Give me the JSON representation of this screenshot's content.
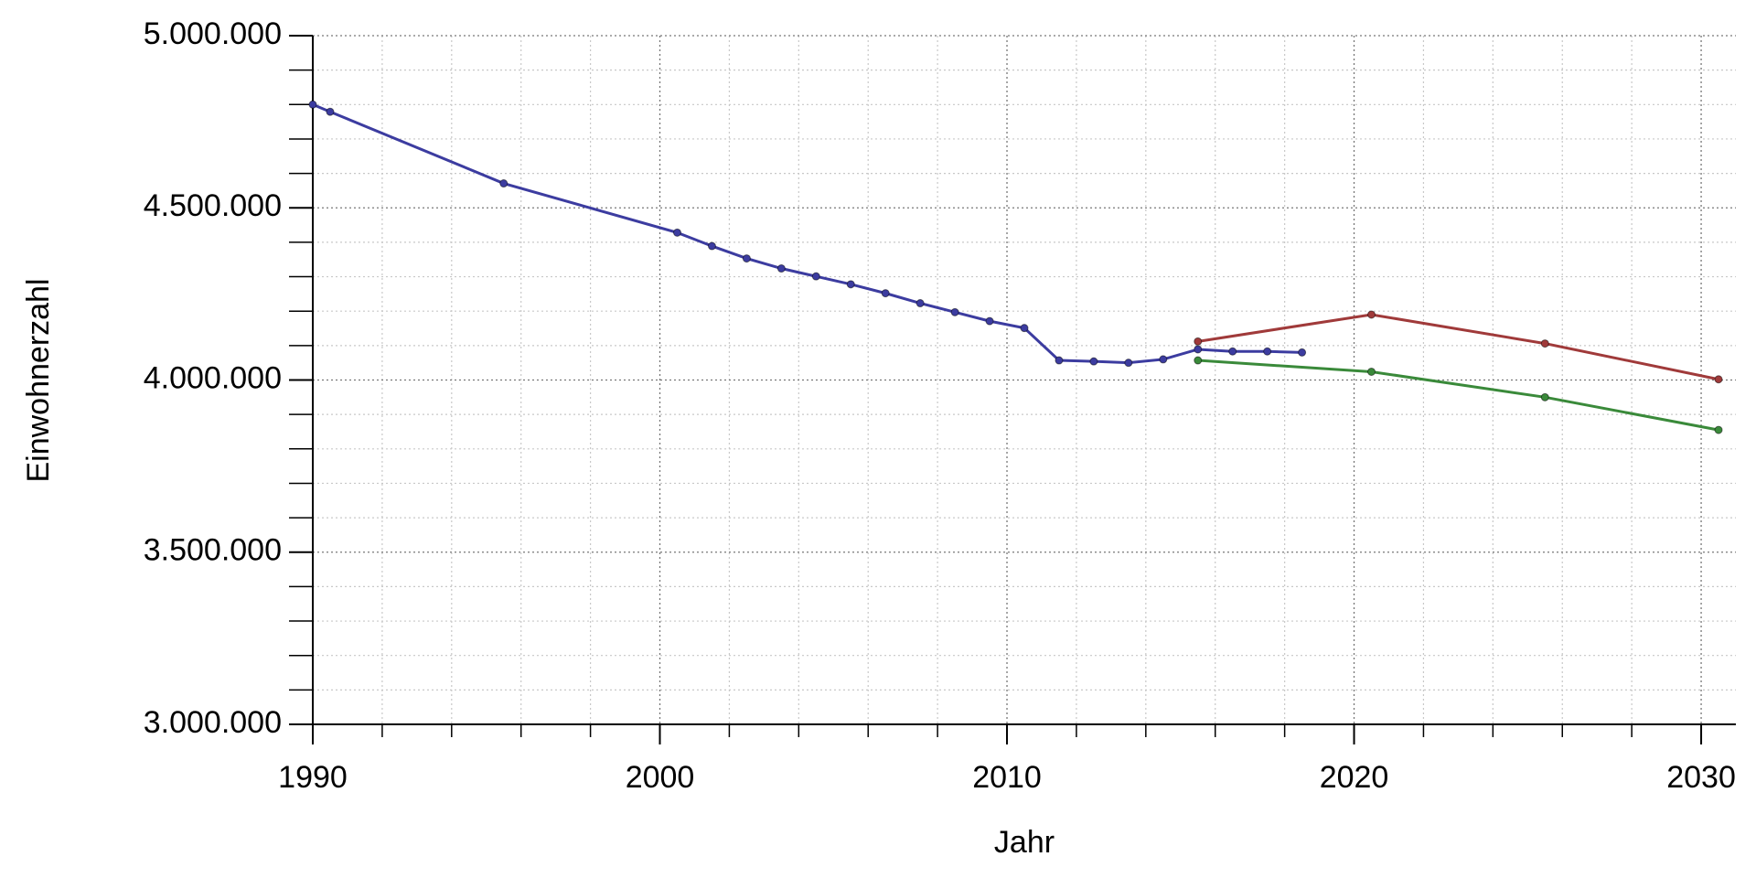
{
  "chart_data": {
    "type": "line",
    "xlabel": "Jahr",
    "ylabel": "Einwohnerzahl",
    "xlim": [
      1990,
      2031
    ],
    "xticks": [
      1990,
      2000,
      2010,
      2020,
      2030
    ],
    "xminorticks": [
      1992,
      1994,
      1996,
      1998,
      2002,
      2004,
      2006,
      2008,
      2012,
      2014,
      2016,
      2018,
      2022,
      2024,
      2026,
      2028
    ],
    "ylim": [
      3000000,
      5000000
    ],
    "yticks": [
      {
        "value": 3000000,
        "label": "3.000.000"
      },
      {
        "value": 3500000,
        "label": "3.500.000"
      },
      {
        "value": 4000000,
        "label": "4.000.000"
      },
      {
        "value": 4500000,
        "label": "4.500.000"
      },
      {
        "value": 5000000,
        "label": "5.000.000"
      }
    ],
    "yminorticks": [
      3100000,
      3200000,
      3300000,
      3400000,
      3600000,
      3700000,
      3800000,
      3900000,
      4100000,
      4200000,
      4300000,
      4400000,
      4600000,
      4700000,
      4800000,
      4900000
    ],
    "grid": true,
    "series": [
      {
        "color": "#3c3ca0",
        "x": [
          1990,
          1990.5,
          1995.5,
          2000.5,
          2001.5,
          2002.5,
          2003.5,
          2004.5,
          2005.5,
          2006.5,
          2007.5,
          2008.5,
          2009.5,
          2010.5,
          2011.5,
          2012.5,
          2013.5,
          2014.5,
          2015.5,
          2016.5,
          2017.5,
          2018.5
        ],
        "values": [
          4800000,
          4779000,
          4571000,
          4428000,
          4389000,
          4353000,
          4324000,
          4301000,
          4278000,
          4252000,
          4223000,
          4197000,
          4171000,
          4151000,
          4057000,
          4054000,
          4050000,
          4060000,
          4089000,
          4083000,
          4083000,
          4080000
        ]
      },
      {
        "color": "#a03a3a",
        "x": [
          2015.5,
          2020.5,
          2025.5,
          2030.5
        ],
        "values": [
          4112000,
          4190000,
          4106000,
          4002000
        ]
      },
      {
        "color": "#3a8a3a",
        "x": [
          2015.5,
          2020.5,
          2025.5,
          2030.5
        ],
        "values": [
          4057000,
          4024000,
          3950000,
          3855000
        ]
      }
    ]
  }
}
